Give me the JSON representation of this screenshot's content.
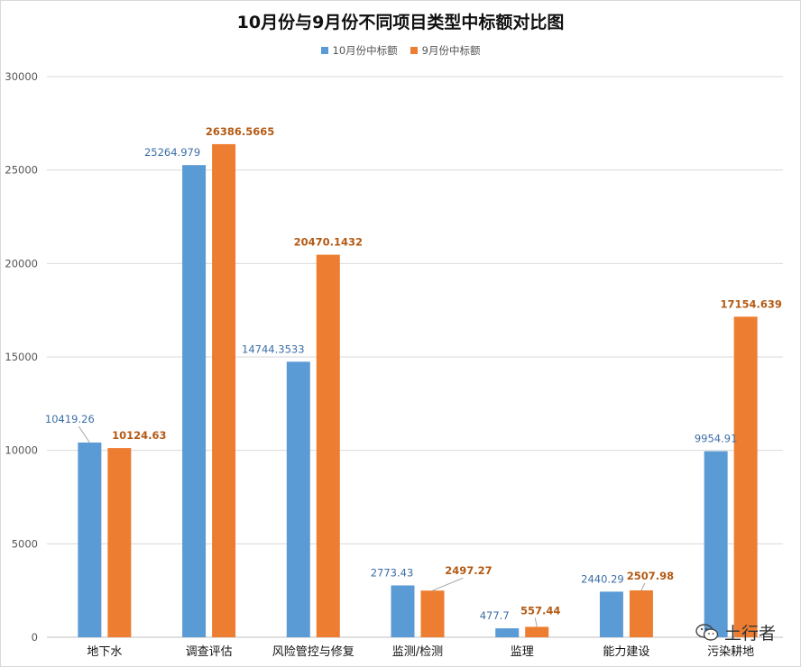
{
  "chart_data": {
    "type": "bar",
    "title": "10月份与9月份不同项目类型中标额对比图",
    "categories": [
      "地下水",
      "调查评估",
      "风险管控与修复",
      "监测/检测",
      "监理",
      "能力建设",
      "污染耕地"
    ],
    "series": [
      {
        "name": "10月份中标额",
        "color": "#5b9bd5",
        "values": [
          10419.26,
          25264.979,
          14744.3533,
          2773.43,
          477.7,
          2440.29,
          9954.91
        ]
      },
      {
        "name": "9月份中标额",
        "color": "#ed7d31",
        "values": [
          10124.63,
          26386.5665,
          20470.1432,
          2497.27,
          557.44,
          2507.98,
          17154.639
        ]
      }
    ],
    "data_labels": {
      "10月份中标额": [
        "10419.26",
        "25264.979",
        "14744.3533",
        "2773.43",
        "477.7",
        "2440.29",
        "9954.91"
      ],
      "9月份中标额": [
        "10124.63",
        "26386.5665",
        "20470.1432",
        "2497.27",
        "557.44",
        "2507.98",
        "17154.639"
      ]
    },
    "ylim": [
      0,
      30000
    ],
    "yticks": [
      0,
      5000,
      10000,
      15000,
      20000,
      25000,
      30000
    ],
    "grid": true,
    "legend": "top-center"
  },
  "watermark": {
    "text": "土行者",
    "icon": "wechat-icon"
  }
}
